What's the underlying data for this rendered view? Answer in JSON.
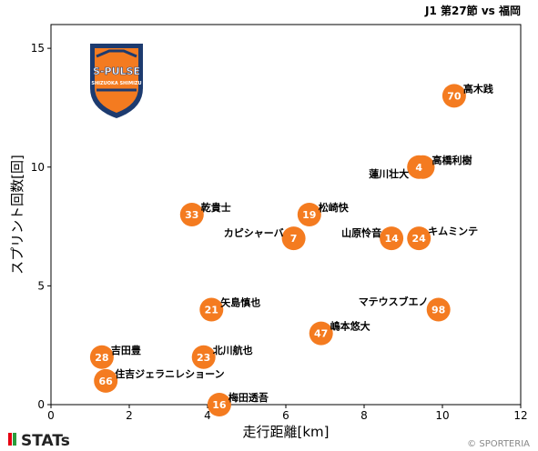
{
  "match_title": "J1 第27節 vs 福岡",
  "logo_text": [
    "S-PULSE",
    "SHIZUOKA SHIMIZU"
  ],
  "brand": "STATs",
  "credit": "© SPORTERIA",
  "colors": {
    "point": "#f47b20",
    "frame": "#000000",
    "logo_orange": "#f47b20",
    "logo_navy": "#1d3b6f"
  },
  "chart_data": {
    "type": "scatter",
    "xlabel": "走行距離[km]",
    "ylabel": "スプリント回数[回]",
    "xlim": [
      0,
      12
    ],
    "ylim": [
      0,
      16
    ],
    "xticks": [
      0,
      2,
      4,
      6,
      8,
      10,
      12
    ],
    "yticks": [
      0,
      5,
      10,
      15
    ],
    "grid": false,
    "points": [
      {
        "number": "70",
        "name": "高木践",
        "x": 10.3,
        "y": 13
      },
      {
        "number": "38",
        "name": "高橋利樹",
        "x": 9.5,
        "y": 10
      },
      {
        "number": "4",
        "name": "蓮川壮大",
        "x": 9.4,
        "y": 10
      },
      {
        "number": "33",
        "name": "乾貴士",
        "x": 3.6,
        "y": 8
      },
      {
        "number": "19",
        "name": "松崎快",
        "x": 6.6,
        "y": 8
      },
      {
        "number": "7",
        "name": "カピシャーバ",
        "x": 6.2,
        "y": 7
      },
      {
        "number": "14",
        "name": "山原怜音",
        "x": 8.7,
        "y": 7
      },
      {
        "number": "24",
        "name": "キムミンテ",
        "x": 9.4,
        "y": 7
      },
      {
        "number": "21",
        "name": "矢島慎也",
        "x": 4.1,
        "y": 4
      },
      {
        "number": "98",
        "name": "マテウスブエノ",
        "x": 9.9,
        "y": 4
      },
      {
        "number": "47",
        "name": "嶋本悠大",
        "x": 6.9,
        "y": 3
      },
      {
        "number": "28",
        "name": "吉田豊",
        "x": 1.3,
        "y": 2
      },
      {
        "number": "23",
        "name": "北川航也",
        "x": 3.9,
        "y": 2
      },
      {
        "number": "66",
        "name": "住吉ジェラニレショーン",
        "x": 1.4,
        "y": 1
      },
      {
        "number": "16",
        "name": "梅田透吾",
        "x": 4.3,
        "y": 0
      }
    ]
  }
}
